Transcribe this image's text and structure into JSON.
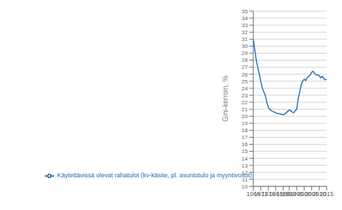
{
  "chart_data": {
    "type": "line",
    "ylabel": "Gini-kerroin, %",
    "x": [
      1966,
      1967,
      1968,
      1969,
      1970,
      1971,
      1972,
      1973,
      1974,
      1975,
      1976,
      1977,
      1978,
      1979,
      1980,
      1981,
      1982,
      1983,
      1984,
      1985,
      1986,
      1987,
      1988,
      1989,
      1990,
      1991,
      1992,
      1993,
      1994,
      1995,
      1996,
      1997,
      1998,
      1999,
      2000,
      2001,
      2002,
      2003,
      2004,
      2005,
      2006,
      2007,
      2008,
      2009,
      2010,
      2011,
      2012,
      2013,
      2014,
      2015
    ],
    "series": [
      {
        "name": "Käytettävissä olevat rahatulot (kv-käsite, pl. asuntotulo ja myyntivoitot)",
        "color": "#1f6eb5",
        "values": [
          31.0,
          29.5,
          28.0,
          27.0,
          26.0,
          25.0,
          24.0,
          23.5,
          23.0,
          22.0,
          21.3,
          21.0,
          20.8,
          20.7,
          20.6,
          20.5,
          20.4,
          20.4,
          20.3,
          20.3,
          20.2,
          20.3,
          20.5,
          20.7,
          20.9,
          20.8,
          20.6,
          20.5,
          20.8,
          21.0,
          22.5,
          23.5,
          24.5,
          25.0,
          25.3,
          25.1,
          25.5,
          25.7,
          25.9,
          26.3,
          26.4,
          26.1,
          25.9,
          25.9,
          25.8,
          25.5,
          25.7,
          25.4,
          25.2,
          25.3
        ]
      }
    ],
    "xlim": [
      1966,
      2015
    ],
    "ylim": [
      10,
      35
    ],
    "xticks": [
      1966,
      1971,
      1976,
      1981,
      1986,
      1990,
      1995,
      2000,
      2005,
      2010,
      2015
    ],
    "yticks": [
      10,
      11,
      12,
      13,
      14,
      15,
      16,
      17,
      18,
      19,
      20,
      21,
      22,
      23,
      24,
      25,
      26,
      27,
      28,
      29,
      30,
      31,
      32,
      33,
      34,
      35
    ],
    "grid": "y",
    "legend": "lower left"
  }
}
